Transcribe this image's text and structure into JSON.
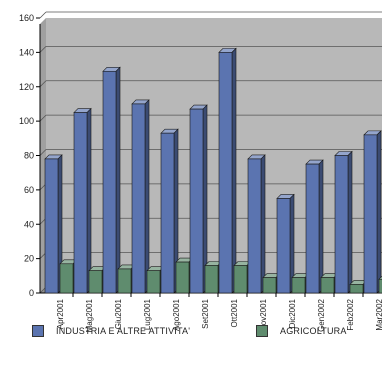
{
  "chart_data": {
    "type": "bar",
    "categories": [
      "Apr2001",
      "Mag2001",
      "Giu2001",
      "Lug2001",
      "Ago2001",
      "Set2001",
      "Ott2001",
      "Nov2001",
      "Dic2001",
      "Gen2002",
      "Feb2002",
      "Mar2002"
    ],
    "series": [
      {
        "name": "INDUSTRIA E ALTRE ATTIVITA'",
        "color": "#5b74b0",
        "values": [
          78,
          105,
          129,
          110,
          93,
          107,
          140,
          78,
          55,
          75,
          80,
          92
        ]
      },
      {
        "name": "AGRICOLTURA",
        "color": "#5f8c6e",
        "values": [
          17,
          13,
          14,
          13,
          18,
          16,
          16,
          9,
          9,
          9,
          5,
          8
        ]
      }
    ],
    "ylim": [
      0,
      160
    ],
    "yticks": [
      0,
      20,
      40,
      60,
      80,
      100,
      120,
      140,
      160
    ],
    "grid": true,
    "three_d": true,
    "plot_background": "#b8b8b8",
    "legend_position": "bottom"
  }
}
